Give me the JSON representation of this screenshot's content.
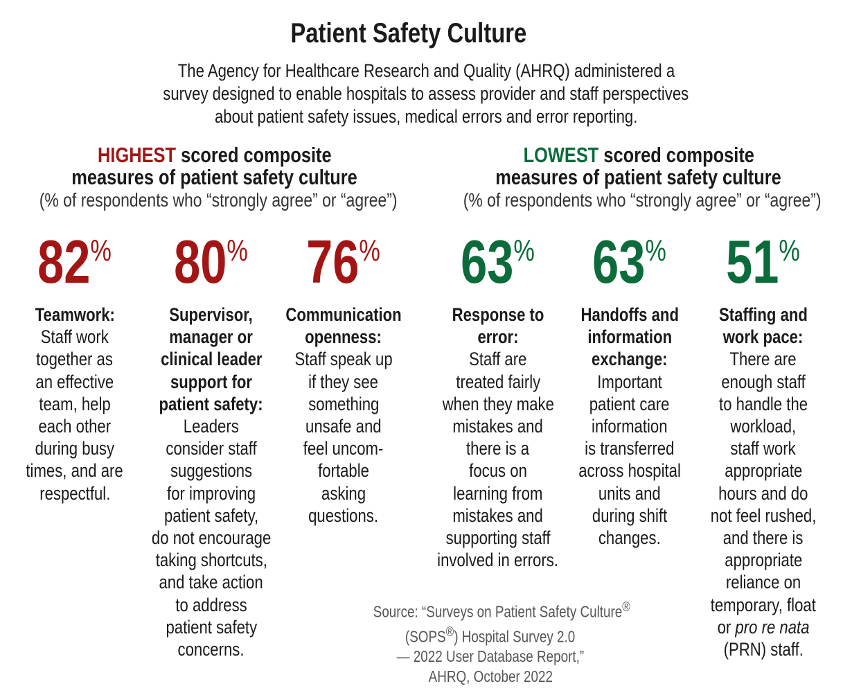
{
  "title": "Patient Safety Culture",
  "intro": [
    "The Agency for Healthcare Research and Quality (AHRQ) administered a",
    "survey designed to enable hospitals to assess provider and staff perspectives",
    "about patient safety issues, medical errors and error reporting."
  ],
  "colors": {
    "highest": "#a31515",
    "lowest": "#0b6b3a",
    "text": "#1a1a1a",
    "source": "#555555"
  },
  "highest": {
    "keyword": "HIGHEST",
    "heading_rest": " scored composite",
    "heading_line2": "measures of patient safety culture",
    "subheading": "(% of respondents who “strongly agree” or “agree”)",
    "items": [
      {
        "value": "82",
        "unit": "%",
        "bold_lines": [
          "Teamwork:"
        ],
        "lines": [
          "Staff work",
          "together as",
          "an effective",
          "team, help",
          "each other",
          "during busy",
          "times, and are",
          "respectful."
        ]
      },
      {
        "value": "80",
        "unit": "%",
        "bold_lines": [
          "Supervisor,",
          "manager or",
          "clinical leader",
          "support for",
          "patient safety:"
        ],
        "lines": [
          "Leaders",
          "consider staff",
          "suggestions",
          "for improving",
          "patient safety,",
          "do not encourage",
          "taking shortcuts,",
          "and take action",
          "to address",
          "patient safety",
          "concerns."
        ]
      },
      {
        "value": "76",
        "unit": "%",
        "bold_lines": [
          "Communication",
          "openness:"
        ],
        "lines": [
          "Staff speak up",
          "if they see",
          "something",
          "unsafe and",
          "feel uncom-",
          "fortable",
          "asking",
          "questions."
        ]
      }
    ]
  },
  "lowest": {
    "keyword": "LOWEST",
    "heading_rest": " scored composite",
    "heading_line2": "measures of patient safety culture",
    "subheading": "(% of respondents who “strongly agree” or “agree”)",
    "items": [
      {
        "value": "63",
        "unit": "%",
        "bold_lines": [
          "Response to",
          "error:"
        ],
        "lines": [
          "Staff are",
          "treated fairly",
          "when they make",
          "mistakes and",
          "there is a",
          "focus on",
          "learning from",
          "mistakes and",
          "supporting staff",
          "involved in errors."
        ]
      },
      {
        "value": "63",
        "unit": "%",
        "bold_lines": [
          "Handoffs and",
          "information",
          "exchange:"
        ],
        "lines": [
          "Important",
          "patient care",
          "information",
          "is transferred",
          "across hospital",
          "units and",
          "during shift",
          "changes."
        ]
      },
      {
        "value": "51",
        "unit": "%",
        "bold_lines": [
          "Staffing and",
          "work pace:"
        ],
        "lines": [
          "There are",
          "enough staff",
          "to handle the",
          "workload,",
          "staff work",
          "appropriate",
          "hours and do",
          "not feel rushed,",
          "and there is",
          "appropriate",
          "reliance on",
          "temporary, float",
          "or <i>pro re nata</i>",
          "(PRN) staff."
        ]
      }
    ]
  },
  "source": [
    "Source: “Surveys on Patient Safety Culture<sup>®</sup>",
    "(SOPS<sup>®</sup>) Hospital Survey 2.0",
    "— 2022 User Database Report,”",
    "AHRQ, October 2022"
  ]
}
